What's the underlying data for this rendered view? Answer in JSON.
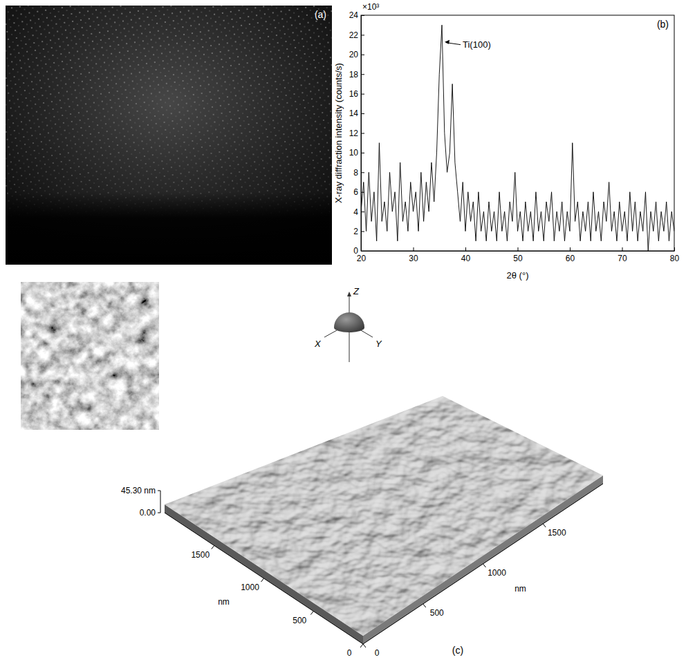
{
  "panel_a": {
    "label": "(a)"
  },
  "chart_data": {
    "type": "line",
    "panel_label": "(b)",
    "x_label": "2θ (°)",
    "y_label": "X-ray diffraction intensity (counts/s)",
    "y_multiplier": "×10³",
    "color": "#000000",
    "xlim": [
      20,
      80
    ],
    "xticks": [
      20,
      30,
      40,
      50,
      60,
      70,
      80
    ],
    "ylim": [
      0,
      24
    ],
    "yticks": [
      0,
      2,
      4,
      6,
      8,
      10,
      12,
      14,
      16,
      18,
      20,
      22,
      24
    ],
    "annotations": [
      {
        "text": "Ti(100)",
        "x": 35.5,
        "y": 21
      }
    ],
    "x": [
      20,
      20.5,
      21,
      21.5,
      22,
      22.5,
      23,
      23.5,
      24,
      24.5,
      25,
      25.5,
      26,
      26.5,
      27,
      27.5,
      28,
      28.5,
      29,
      29.5,
      30,
      30.5,
      31,
      31.5,
      32,
      32.5,
      33,
      33.5,
      34,
      34.5,
      35,
      35.5,
      36,
      36.5,
      37,
      37.5,
      38,
      38.5,
      39,
      39.5,
      40,
      40.5,
      41,
      41.5,
      42,
      42.5,
      43,
      43.5,
      44,
      44.5,
      45,
      45.5,
      46,
      46.5,
      47,
      47.5,
      48,
      48.5,
      49,
      49.5,
      50,
      50.5,
      51,
      51.5,
      52,
      52.5,
      53,
      53.5,
      54,
      54.5,
      55,
      55.5,
      56,
      56.5,
      57,
      57.5,
      58,
      58.5,
      59,
      59.5,
      60,
      60.5,
      61,
      61.5,
      62,
      62.5,
      63,
      63.5,
      64,
      64.5,
      65,
      65.5,
      66,
      66.5,
      67,
      67.5,
      68,
      68.5,
      69,
      69.5,
      70,
      70.5,
      71,
      71.5,
      72,
      72.5,
      73,
      73.5,
      74,
      74.5,
      75,
      75.5,
      76,
      76.5,
      77,
      77.5,
      78,
      78.5,
      79,
      79.5,
      80
    ],
    "values": [
      4,
      7,
      2,
      8,
      3,
      6,
      1,
      11,
      3,
      5,
      2,
      8,
      4,
      6,
      1,
      9,
      3,
      5,
      2,
      7,
      4,
      6,
      2,
      8,
      3,
      7,
      4,
      9,
      5,
      10,
      18,
      23,
      12,
      8,
      10,
      17,
      9,
      6,
      3,
      7,
      2,
      6,
      3,
      5,
      1,
      6,
      2,
      4,
      1,
      5,
      2,
      4,
      1,
      6,
      2,
      4,
      1,
      5,
      3,
      8,
      2,
      4,
      1,
      5,
      2,
      4,
      1,
      6,
      2,
      4,
      1,
      5,
      3,
      6,
      1,
      4,
      2,
      5,
      1,
      4,
      2,
      11,
      3,
      5,
      1,
      4,
      2,
      5,
      1,
      6,
      2,
      4,
      1,
      5,
      3,
      7,
      2,
      4,
      1,
      5,
      2,
      4,
      1,
      6,
      2,
      5,
      1,
      4,
      2,
      6,
      0,
      4,
      2,
      5,
      1,
      4,
      2,
      5,
      1,
      4,
      2
    ]
  },
  "panel_c": {
    "label": "(c)",
    "gizmo": {
      "z": "Z",
      "x": "X",
      "y": "Y"
    },
    "zlim": [
      0,
      45.3
    ],
    "zticks": [
      {
        "value": 0,
        "label": "0.00"
      },
      {
        "value": 45.3,
        "label": "45.30 nm"
      }
    ],
    "x_axis": {
      "label": "nm",
      "lim": [
        0,
        2000
      ],
      "ticks": [
        0,
        500,
        1000,
        1500
      ]
    },
    "y_axis": {
      "label": "nm",
      "lim": [
        0,
        2000
      ],
      "ticks": [
        0,
        500,
        1000,
        1500
      ]
    }
  }
}
